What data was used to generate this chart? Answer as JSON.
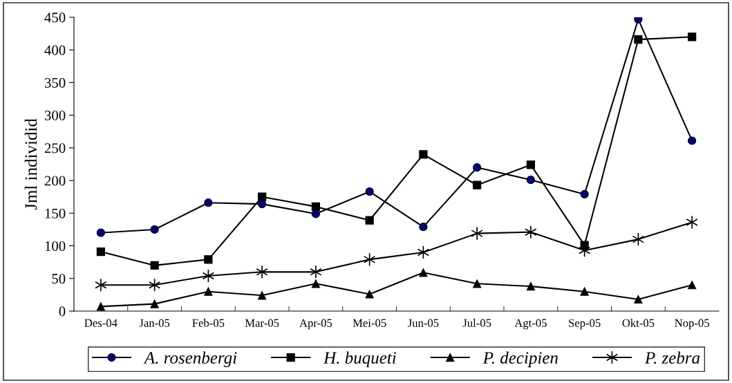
{
  "chart_data": {
    "type": "line",
    "ylabel": "Jml individid",
    "categories": [
      "Des-04",
      "Jan-05",
      "Feb-05",
      "Mar-05",
      "Apr-05",
      "Mei-05",
      "Jun-05",
      "Jul-05",
      "Agt-05",
      "Sep-05",
      "Okt-05",
      "Nop-05"
    ],
    "ylim": [
      0,
      450
    ],
    "yticks": [
      0,
      50,
      100,
      150,
      200,
      250,
      300,
      350,
      400,
      450
    ],
    "grid": false,
    "legend": "bottom",
    "series": [
      {
        "name": "A. rosenbergi",
        "color": "#000080",
        "marker": "circle",
        "values": [
          120,
          125,
          166,
          164,
          149,
          183,
          129,
          220,
          201,
          179,
          447,
          261
        ]
      },
      {
        "name": "H. buqueti",
        "color": "#000000",
        "marker": "square",
        "values": [
          91,
          70,
          79,
          175,
          160,
          139,
          240,
          193,
          224,
          101,
          416,
          420
        ]
      },
      {
        "name": "P. decipien",
        "color": "#000000",
        "marker": "triangle",
        "values": [
          7,
          11,
          30,
          24,
          42,
          26,
          59,
          42,
          38,
          30,
          18,
          40
        ]
      },
      {
        "name": "P. zebra",
        "color": "#000000",
        "marker": "cross",
        "values": [
          40,
          40,
          54,
          60,
          60,
          79,
          90,
          119,
          121,
          93,
          110,
          136
        ]
      }
    ]
  }
}
